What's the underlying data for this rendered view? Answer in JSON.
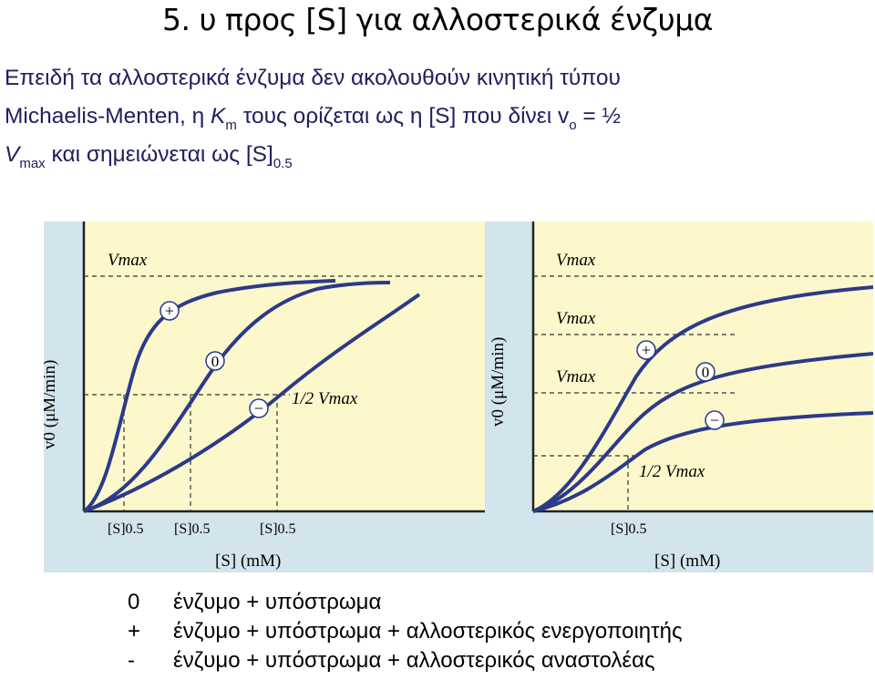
{
  "title": "5. υ προς [S] για αλλοστερικά ένζυμα",
  "paragraph": {
    "line1": "Επειδή τα αλλοστερικά ένζυμα δεν ακολουθούν κινητική τύπου",
    "line2_a": "Michaelis-Menten, η ",
    "km_k": "K",
    "km_sub": "m",
    "line2_b": " τους ορίζεται ως η [S] που δίνει v",
    "vo_sub": "o",
    "line2_c": " = ½",
    "vmax_v": "V",
    "vmax_sub": "max",
    "line3_b": " και σημειώνεται ως [S]",
    "s05_sub": "0.5"
  },
  "figure": {
    "left_panel": {
      "y_axis_label": "v0 (μM/min)",
      "x_axis_label": "[S] (mM)",
      "vmax_label": "Vmax",
      "half_vmax_label": "1/2 Vmax",
      "s05_labels": [
        "[S]0.5",
        "[S]0.5",
        "[S]0.5"
      ],
      "curve_markers": [
        "+",
        "0",
        "−"
      ]
    },
    "right_panel": {
      "y_axis_label": "v0 (μM/min)",
      "x_axis_label": "[S] (mM)",
      "vmax_labels": [
        "Vmax",
        "Vmax",
        "Vmax"
      ],
      "half_vmax_label": "1/2 Vmax",
      "s05_label": "[S]0.5",
      "curve_markers": [
        "+",
        "0",
        "−"
      ]
    },
    "colors": {
      "background": "#fdf8cc",
      "frame": "#d2e4ec",
      "curve": "#2b3a88"
    }
  },
  "legend": [
    {
      "symbol": "0",
      "text": "ένζυμο + υπόστρωμα"
    },
    {
      "symbol": "+",
      "text": "ένζυμο + υπόστρωμα + αλλοστερικός ενεργοποιητής"
    },
    {
      "symbol": "-",
      "text": "ένζυμο + υπόστρωμα + αλλοστερικός αναστολέας"
    }
  ]
}
